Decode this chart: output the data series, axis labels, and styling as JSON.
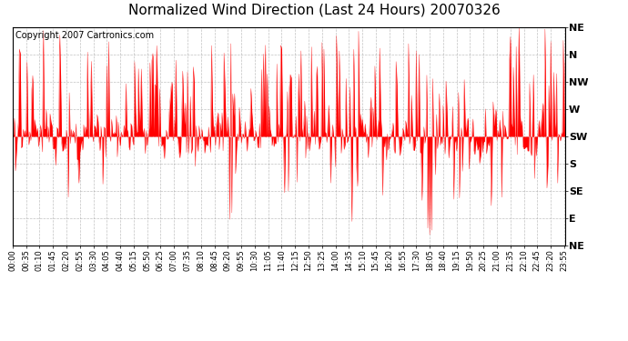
{
  "title": "Normalized Wind Direction (Last 24 Hours) 20070326",
  "copyright_text": "Copyright 2007 Cartronics.com",
  "line_color": "#FF0000",
  "bg_color": "#FFFFFF",
  "plot_bg_color": "#FFFFFF",
  "grid_color": "#999999",
  "ytick_labels": [
    "NE",
    "N",
    "NW",
    "W",
    "SW",
    "S",
    "SE",
    "E",
    "NE"
  ],
  "ytick_values": [
    1.0,
    0.875,
    0.75,
    0.625,
    0.5,
    0.375,
    0.25,
    0.125,
    0.0
  ],
  "ymin": 0.0,
  "ymax": 1.0,
  "n_points": 576,
  "base_value": 0.5,
  "title_fontsize": 11,
  "copyright_fontsize": 7,
  "tick_label_fontsize": 6,
  "ytick_fontsize": 8,
  "figwidth": 6.9,
  "figheight": 3.75,
  "dpi": 100,
  "x_tick_every": 14,
  "x_tick_step_min": 35
}
